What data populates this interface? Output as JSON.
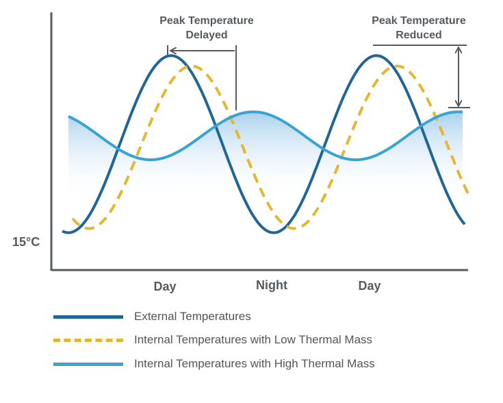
{
  "chart_data": {
    "type": "line",
    "title": "",
    "ylabel": "",
    "xlabel": "",
    "y_tick_label": "15°C",
    "x_categories": [
      "Day",
      "Night",
      "Day"
    ],
    "x_range": [
      0,
      2
    ],
    "y_range": [
      0,
      10
    ],
    "series": [
      {
        "name": "External Temperatures",
        "style": "solid",
        "color": "#1f6596",
        "description": "sinusoid",
        "min": 1.2,
        "max": 9.7,
        "period_days": 1,
        "peak_day": 0.5
      },
      {
        "name": "Internal Temperatures with Low Thermal Mass",
        "style": "dashed",
        "color": "#e3b732",
        "description": "sinusoid",
        "min": 1.4,
        "max": 9.2,
        "period_days": 1,
        "peak_day": 0.6
      },
      {
        "name": "Internal Temperatures with High Thermal Mass",
        "style": "solid",
        "color": "#3aa3d4",
        "description": "sinusoid",
        "min": 4.7,
        "max": 7.0,
        "period_days": 1,
        "peak_day": 0.9
      }
    ],
    "annotations": [
      {
        "id": "delayed",
        "line1": "Peak Temperature",
        "line2": "Delayed"
      },
      {
        "id": "reduced",
        "line1": "Peak Temperature",
        "line2": "Reduced"
      }
    ]
  },
  "legend": [
    {
      "label": "External Temperatures",
      "color": "#1f6596",
      "style": "solid"
    },
    {
      "label": "Internal Temperatures with Low Thermal Mass",
      "color": "#e3b732",
      "style": "dashed"
    },
    {
      "label": "Internal Temperatures with High Thermal Mass",
      "color": "#3aa3d4",
      "style": "solid"
    }
  ],
  "colors": {
    "axis": "#555a60",
    "fill_top": "#9bc8ea",
    "fill_bottom": "#ffffff"
  }
}
